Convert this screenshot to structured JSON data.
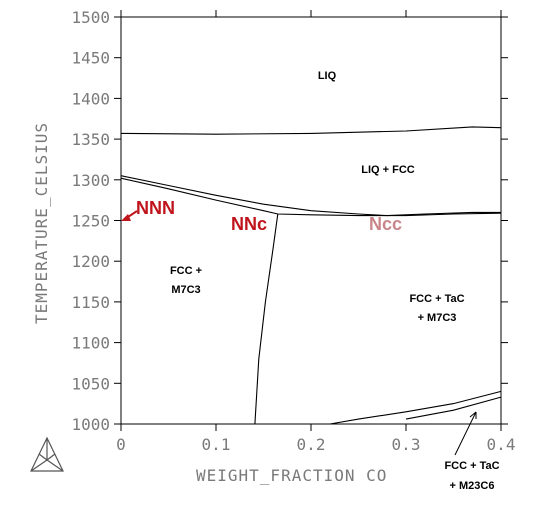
{
  "chart_data": {
    "type": "line",
    "xlabel": "WEIGHT_FRACTION CO",
    "ylabel": "TEMPERATURE_CELSIUS",
    "xlim": [
      0,
      0.4
    ],
    "ylim": [
      1000,
      1500
    ],
    "x_ticks": [
      "0",
      "0.1",
      "0.2",
      "0.3",
      "0.4"
    ],
    "y_ticks": [
      "1500",
      "1450",
      "1400",
      "1350",
      "1300",
      "1250",
      "1200",
      "1150",
      "1100",
      "1050",
      "1000"
    ],
    "phase_labels": {
      "liq": "LIQ",
      "liq_fcc": "LIQ + FCC",
      "fcc_m7c3_1": "FCC +",
      "fcc_m7c3_2": "M7C3",
      "fcc_tac_m7c3_1": "FCC + TaC",
      "fcc_tac_m7c3_2": "+ M7C3",
      "fcc_tac_m23c6_1": "FCC + TaC",
      "fcc_tac_m23c6_2": "+ M23C6"
    },
    "markers": [
      {
        "label": "NNN",
        "color": "#c0141c"
      },
      {
        "label": "NNc",
        "color": "#c0141c"
      },
      {
        "label": "Ncc",
        "color": "#c9858a"
      }
    ],
    "series": [
      {
        "values": [
          [
            0,
            1357
          ],
          [
            0.1,
            1356
          ],
          [
            0.2,
            1357
          ],
          [
            0.3,
            1360
          ],
          [
            0.37,
            1365
          ],
          [
            0.4,
            1364
          ]
        ]
      },
      {
        "values": [
          [
            0,
            1305
          ],
          [
            0.05,
            1293
          ],
          [
            0.1,
            1281
          ],
          [
            0.15,
            1270
          ],
          [
            0.2,
            1262
          ],
          [
            0.25,
            1258
          ],
          [
            0.28,
            1256
          ],
          [
            0.32,
            1258
          ],
          [
            0.37,
            1260
          ],
          [
            0.4,
            1260
          ]
        ]
      },
      {
        "values": [
          [
            0,
            1302
          ],
          [
            0.05,
            1289
          ],
          [
            0.1,
            1275
          ],
          [
            0.15,
            1262
          ],
          [
            0.165,
            1258
          ],
          [
            0.2,
            1257
          ],
          [
            0.25,
            1256
          ],
          [
            0.3,
            1256
          ],
          [
            0.35,
            1258
          ],
          [
            0.4,
            1259
          ]
        ]
      },
      {
        "values": [
          [
            0.165,
            1258
          ],
          [
            0.16,
            1215
          ],
          [
            0.152,
            1150
          ],
          [
            0.145,
            1080
          ],
          [
            0.141,
            1000
          ]
        ]
      },
      {
        "values": [
          [
            0.22,
            1000
          ],
          [
            0.25,
            1006
          ],
          [
            0.3,
            1015
          ],
          [
            0.35,
            1025
          ],
          [
            0.4,
            1040
          ]
        ]
      },
      {
        "values": [
          [
            0.3,
            1006
          ],
          [
            0.35,
            1017
          ],
          [
            0.4,
            1033
          ]
        ]
      }
    ]
  }
}
